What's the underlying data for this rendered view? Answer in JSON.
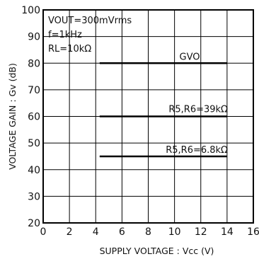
{
  "chart_data": {
    "type": "line",
    "xlabel": "SUPPLY VOLTAGE : Vcc  (V)",
    "ylabel": "VOLTAGE GAIN : Gv  (dB)",
    "xlim": [
      0,
      16
    ],
    "ylim": [
      20,
      100
    ],
    "x_ticks": [
      0,
      2,
      4,
      6,
      8,
      10,
      12,
      14,
      16
    ],
    "y_ticks": [
      20,
      30,
      40,
      50,
      60,
      70,
      80,
      90,
      100
    ],
    "grid": true,
    "conditions": [
      "VOUT=300mVrms",
      "f=1kHz",
      "RL=10kΩ"
    ],
    "series": [
      {
        "name": "GVO",
        "x": [
          4.3,
          14
        ],
        "y": [
          80,
          80
        ]
      },
      {
        "name": "R5,R6=39kΩ",
        "x": [
          4.3,
          14
        ],
        "y": [
          60,
          60
        ]
      },
      {
        "name": "R5,R6=6.8kΩ",
        "x": [
          4.3,
          14
        ],
        "y": [
          45,
          45
        ]
      }
    ]
  }
}
